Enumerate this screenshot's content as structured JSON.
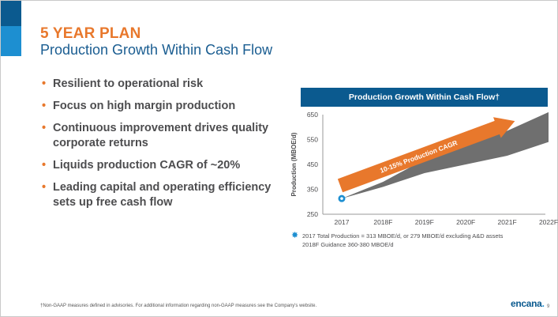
{
  "header": {
    "kicker": "5 YEAR PLAN",
    "subtitle": "Production Growth Within Cash Flow"
  },
  "bullets": [
    {
      "lines": [
        "Resilient to operational risk"
      ]
    },
    {
      "lines": [
        "Focus on high margin production"
      ]
    },
    {
      "lines": [
        "Continuous improvement drives quality",
        "corporate returns"
      ]
    },
    {
      "lines": [
        "Liquids production CAGR of ~20%"
      ]
    },
    {
      "lines": [
        "Leading capital and operating efficiency",
        "sets up free cash flow"
      ]
    }
  ],
  "chart_banner": "Production Growth Within Cash Flow†",
  "chart_data": {
    "type": "area",
    "title": "Production Growth Within Cash Flow†",
    "ylabel": "Production (MBOE/d)",
    "xlabel": "",
    "categories": [
      "2017",
      "2018F",
      "2019F",
      "2020F",
      "2021F",
      "2022F"
    ],
    "ylim": [
      250,
      650
    ],
    "yticks": [
      250,
      350,
      450,
      550,
      650
    ],
    "series": [
      {
        "name": "",
        "type": "band",
        "lower": [
          313,
          360,
          415,
          450,
          485,
          540
        ],
        "upper": [
          313,
          380,
          470,
          525,
          585,
          660
        ]
      }
    ],
    "point_2017": 313,
    "annotation": "10-15% Production CAGR",
    "colors": {
      "band": "#6f6f6f",
      "arrow": "#e8782c",
      "marker": "#1d8fd1"
    }
  },
  "legend_note": {
    "line1": "2017 Total Production = 313 MBOE/d, or 279 MBOE/d excluding A&D assets",
    "line2": "2018F Guidance 360-380 MBOE/d"
  },
  "footnote": "†Non-GAAP measures defined in advisories. For additional information regarding non-GAAP measures see the Company's website.",
  "logo": {
    "text": "encana",
    "dot": "."
  },
  "page_number": "9"
}
